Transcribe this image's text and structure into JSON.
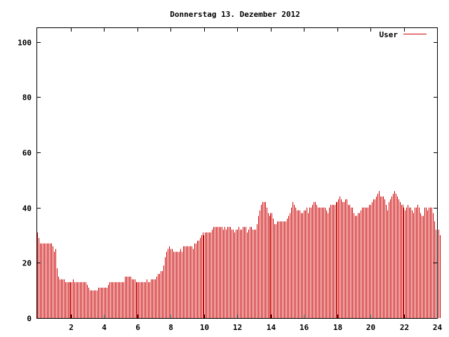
{
  "chart_data": {
    "type": "bar",
    "title": "Donnerstag 13. Dezember 2012",
    "xlabel": "",
    "ylabel": "",
    "xlim": [
      0,
      24
    ],
    "ylim": [
      0,
      105
    ],
    "x_ticks": [
      "2",
      "4",
      "6",
      "8",
      "10",
      "12",
      "14",
      "16",
      "18",
      "20",
      "22",
      "24"
    ],
    "y_ticks": [
      "0",
      "20",
      "40",
      "60",
      "80",
      "100"
    ],
    "grid": false,
    "legend_position": "top-right",
    "series": [
      {
        "name": "User",
        "color": "#cc0000",
        "interval_hours": 0.0833333,
        "values": [
          31,
          29,
          27,
          27,
          27,
          27,
          27,
          27,
          27,
          27,
          27,
          26,
          24,
          25,
          18,
          15,
          14,
          14,
          14,
          14,
          13,
          13,
          13,
          13,
          13,
          13,
          14,
          13,
          13,
          13,
          13,
          13,
          13,
          13,
          13,
          13,
          12,
          11,
          10,
          10,
          10,
          10,
          10,
          10,
          11,
          11,
          11,
          11,
          11,
          11,
          11,
          12,
          13,
          13,
          13,
          13,
          13,
          13,
          13,
          13,
          13,
          13,
          13,
          15,
          15,
          15,
          15,
          15,
          14,
          14,
          14,
          13,
          13,
          13,
          13,
          13,
          13,
          13,
          13,
          14,
          13,
          13,
          14,
          14,
          14,
          14,
          15,
          16,
          16,
          17,
          17,
          19,
          22,
          24,
          25,
          26,
          25,
          25,
          24,
          24,
          24,
          24,
          24,
          25,
          24,
          26,
          26,
          26,
          26,
          26,
          26,
          26,
          25,
          27,
          27,
          28,
          28,
          29,
          30,
          31,
          30,
          31,
          31,
          31,
          31,
          31,
          32,
          33,
          33,
          33,
          33,
          33,
          33,
          33,
          32,
          33,
          32,
          33,
          33,
          33,
          32,
          32,
          31,
          32,
          32,
          33,
          32,
          32,
          33,
          33,
          33,
          31,
          32,
          33,
          33,
          32,
          32,
          32,
          34,
          37,
          39,
          41,
          42,
          42,
          42,
          40,
          38,
          37,
          38,
          38,
          36,
          34,
          34,
          35,
          35,
          35,
          35,
          35,
          35,
          35,
          36,
          37,
          38,
          40,
          42,
          41,
          40,
          39,
          39,
          39,
          38,
          38,
          39,
          39,
          40,
          38,
          40,
          40,
          41,
          42,
          42,
          41,
          40,
          40,
          40,
          40,
          40,
          40,
          39,
          38,
          40,
          41,
          41,
          41,
          41,
          42,
          42,
          43,
          44,
          43,
          42,
          42,
          43,
          43,
          41,
          41,
          40,
          40,
          38,
          37,
          37,
          38,
          38,
          39,
          40,
          40,
          40,
          40,
          40,
          41,
          41,
          42,
          43,
          43,
          44,
          45,
          46,
          44,
          44,
          44,
          43,
          41,
          39,
          42,
          43,
          44,
          45,
          46,
          45,
          44,
          43,
          42,
          41,
          41,
          40,
          39,
          40,
          41,
          40,
          40,
          39,
          38,
          40,
          40,
          41,
          40,
          38,
          37,
          37,
          40,
          40,
          39,
          40,
          40,
          40,
          38,
          35,
          32,
          32,
          32,
          30
        ]
      }
    ]
  }
}
